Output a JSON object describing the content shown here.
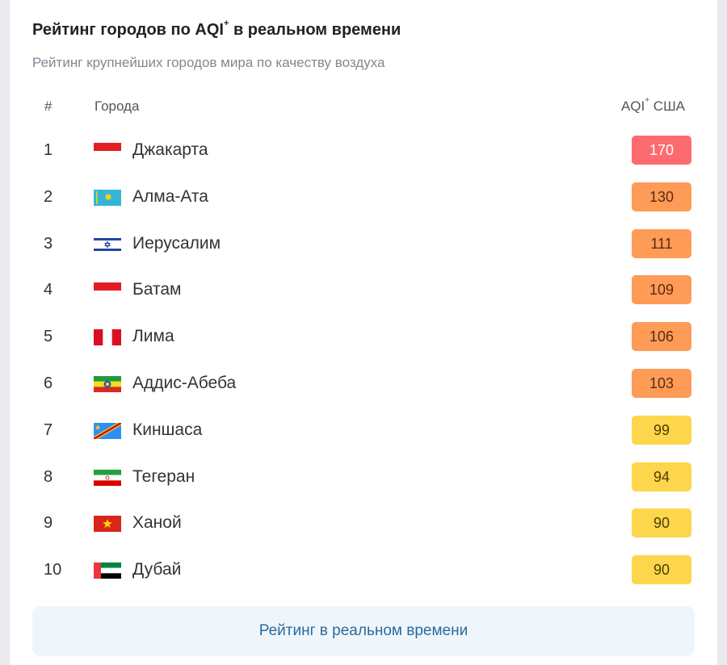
{
  "header": {
    "title": "Рейтинг городов по AQI",
    "title_sup": "+",
    "title_tail": " в реальном времени",
    "subtitle": "Рейтинг крупнейших городов мира по качеству воздуха"
  },
  "columns": {
    "rank": "#",
    "city": "Города",
    "aqi": "AQI",
    "aqi_sup": "+",
    "aqi_tail": " США"
  },
  "rows": [
    {
      "rank": "1",
      "city": "Джакарта",
      "aqi": "170",
      "flag": "indonesia-flag",
      "badge_color": "#fd6b70",
      "text_color": "#ffffff"
    },
    {
      "rank": "2",
      "city": "Алма-Ата",
      "aqi": "130",
      "flag": "kazakhstan-flag",
      "badge_color": "#fe9b57",
      "text_color": "#5c2a10"
    },
    {
      "rank": "3",
      "city": "Иерусалим",
      "aqi": "111",
      "flag": "israel-flag",
      "badge_color": "#fe9b57",
      "text_color": "#5c2a10"
    },
    {
      "rank": "4",
      "city": "Батам",
      "aqi": "109",
      "flag": "indonesia-flag",
      "badge_color": "#fe9b57",
      "text_color": "#5c2a10"
    },
    {
      "rank": "5",
      "city": "Лима",
      "aqi": "106",
      "flag": "peru-flag",
      "badge_color": "#fe9b57",
      "text_color": "#5c2a10"
    },
    {
      "rank": "6",
      "city": "Аддис-Абеба",
      "aqi": "103",
      "flag": "ethiopia-flag",
      "badge_color": "#fe9b57",
      "text_color": "#5c2a10"
    },
    {
      "rank": "7",
      "city": "Киншаса",
      "aqi": "99",
      "flag": "dr-congo-flag",
      "badge_color": "#fdd64b",
      "text_color": "#4d3d05"
    },
    {
      "rank": "8",
      "city": "Тегеран",
      "aqi": "94",
      "flag": "iran-flag",
      "badge_color": "#fdd64b",
      "text_color": "#4d3d05"
    },
    {
      "rank": "9",
      "city": "Ханой",
      "aqi": "90",
      "flag": "vietnam-flag",
      "badge_color": "#fdd64b",
      "text_color": "#4d3d05"
    },
    {
      "rank": "10",
      "city": "Дубай",
      "aqi": "90",
      "flag": "uae-flag",
      "badge_color": "#fdd64b",
      "text_color": "#4d3d05"
    }
  ],
  "cta": {
    "label": "Рейтинг в реальном времени"
  }
}
